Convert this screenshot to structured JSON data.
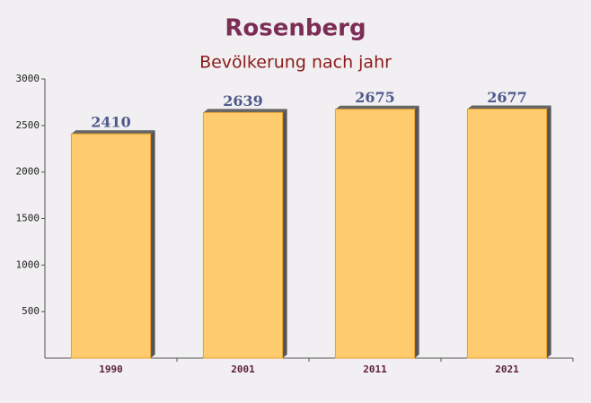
{
  "chart_data": {
    "type": "bar",
    "title": "Rosenberg",
    "subtitle": "Bevölkerung nach jahr",
    "categories": [
      "1990",
      "2001",
      "2011",
      "2021"
    ],
    "values": [
      2410,
      2639,
      2675,
      2677
    ],
    "color": "#ffc65e",
    "ylim": [
      0,
      3000
    ],
    "yticks": [
      500,
      1000,
      1500,
      2000,
      2500,
      3000
    ]
  }
}
